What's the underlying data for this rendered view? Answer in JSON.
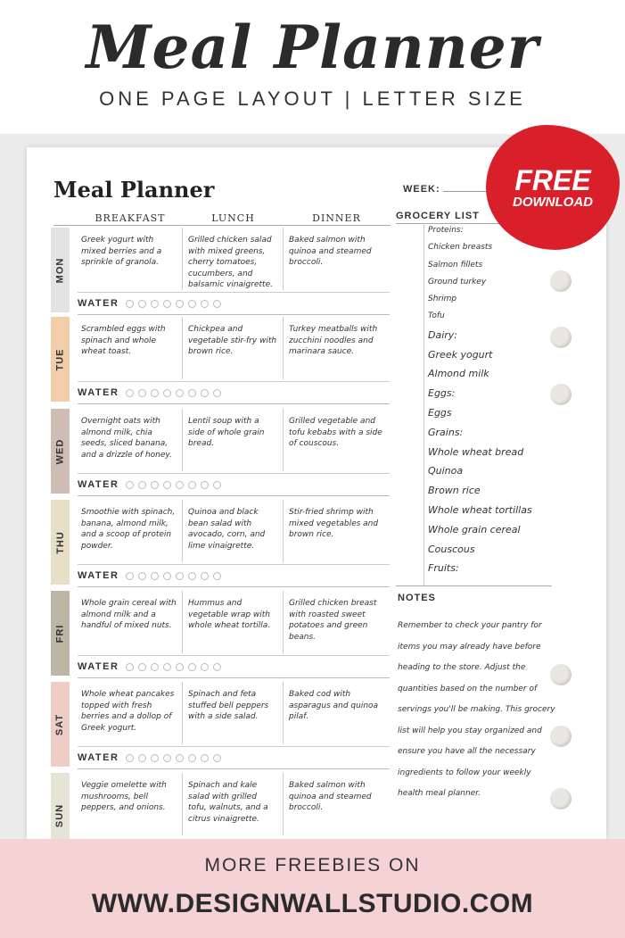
{
  "hero": {
    "title": "Meal Planner",
    "subtitle": "ONE PAGE LAYOUT | LETTER SIZE"
  },
  "badge": {
    "line1": "FREE",
    "line2": "DOWNLOAD",
    "color": "#d81f2a"
  },
  "sheet": {
    "title": "Meal Planner",
    "week_label": "WEEK:",
    "columns": [
      "BREAKFAST",
      "LUNCH",
      "DINNER"
    ],
    "water_label": "WATER",
    "water_circles": 8,
    "days": [
      {
        "day": "MON",
        "color": "#e3e3e3",
        "breakfast": "Greek yogurt with mixed berries and a sprinkle of granola.",
        "lunch": "Grilled chicken salad with mixed greens, cherry tomatoes, cucumbers, and balsamic vinaigrette.",
        "dinner": "Baked salmon with quinoa and steamed broccoli."
      },
      {
        "day": "TUE",
        "color": "#f2cdaa",
        "breakfast": "Scrambled eggs with spinach and whole wheat toast.",
        "lunch": "Chickpea and vegetable stir-fry with brown rice.",
        "dinner": "Turkey meatballs with zucchini noodles and marinara sauce."
      },
      {
        "day": "WED",
        "color": "#cdbdb5",
        "breakfast": "Overnight oats with almond milk, chia seeds, sliced banana, and a drizzle of honey.",
        "lunch": "Lentil soup with a side of whole grain bread.",
        "dinner": "Grilled vegetable and tofu kebabs with a side of couscous."
      },
      {
        "day": "THU",
        "color": "#e8e0c6",
        "breakfast": "Smoothie with spinach, banana, almond milk, and a scoop of protein powder.",
        "lunch": "Quinoa and black bean salad with avocado, corn, and lime vinaigrette.",
        "dinner": "Stir-fried shrimp with mixed vegetables and brown rice."
      },
      {
        "day": "FRI",
        "color": "#bdb6a6",
        "breakfast": "Whole grain cereal with almond milk and a handful of mixed nuts.",
        "lunch": "Hummus and vegetable wrap with whole wheat tortilla.",
        "dinner": "Grilled chicken breast with roasted sweet potatoes and green beans."
      },
      {
        "day": "SAT",
        "color": "#eecdc6",
        "breakfast": "Whole wheat pancakes topped with fresh berries and a dollop of Greek yogurt.",
        "lunch": "Spinach and feta stuffed bell peppers with a side salad.",
        "dinner": "Baked cod with asparagus and quinoa pilaf."
      },
      {
        "day": "SUN",
        "color": "#e6e4d6",
        "breakfast": "Veggie omelette with mushrooms, bell peppers, and onions.",
        "lunch": "Spinach and kale salad with grilled tofu, walnuts, and a citrus vinaigrette.",
        "dinner": "Baked salmon with quinoa and steamed broccoli."
      }
    ]
  },
  "grocery": {
    "title": "GROCERY LIST",
    "items": [
      "Proteins:",
      "Chicken breasts",
      "Salmon fillets",
      "Ground turkey",
      "Shrimp",
      "Tofu",
      "Dairy:",
      "Greek yogurt",
      "Almond milk",
      "Eggs:",
      "Eggs",
      "Grains:",
      "Whole wheat bread",
      "Quinoa",
      "Brown rice",
      "Whole wheat tortillas",
      "Whole grain cereal",
      "Couscous",
      "Fruits:"
    ]
  },
  "notes": {
    "title": "NOTES",
    "text": "Remember to check your pantry for items you may already have before heading to the store. Adjust the quantities based on the number of servings you'll be making. This grocery list will help you stay organized and ensure you have all the necessary ingredients to follow your weekly health meal planner."
  },
  "footer": {
    "line1": "MORE FREEBIES ON",
    "line2": "WWW.DESIGNWALLSTUDIO.COM",
    "color": "#f5d2d3"
  }
}
